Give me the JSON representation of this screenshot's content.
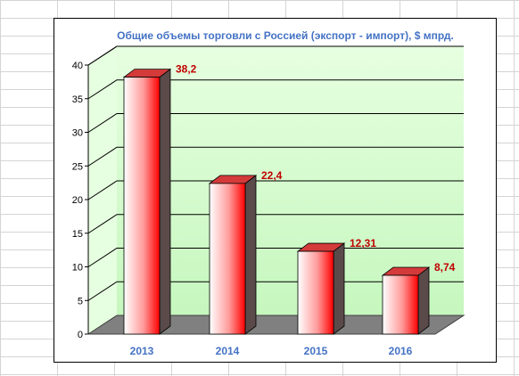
{
  "chart_data": {
    "type": "bar",
    "title": "Общие объемы торговли с Россией (экспорт - импорт), $ мпрд.",
    "categories": [
      "2013",
      "2014",
      "2015",
      "2016"
    ],
    "values": [
      38.2,
      22.4,
      12.31,
      8.74
    ],
    "value_labels": [
      "38,2",
      "22,4",
      "12,31",
      "8,74"
    ],
    "yticks": [
      "0",
      "5",
      "10",
      "15",
      "20",
      "25",
      "30",
      "35",
      "40"
    ],
    "ylim": [
      0,
      40
    ],
    "xlabel": "",
    "ylabel": "",
    "grid": true,
    "legend": "none",
    "style": "3d-column",
    "colors": {
      "title": "#4472c4",
      "category_labels": "#4472c4",
      "value_labels": "#c00000",
      "bar_light": "#ffffff",
      "bar_dark": "#ff0000",
      "wall_top": "#e6ffe0",
      "wall_bottom": "#c6f7be",
      "floor": "#808080"
    }
  }
}
